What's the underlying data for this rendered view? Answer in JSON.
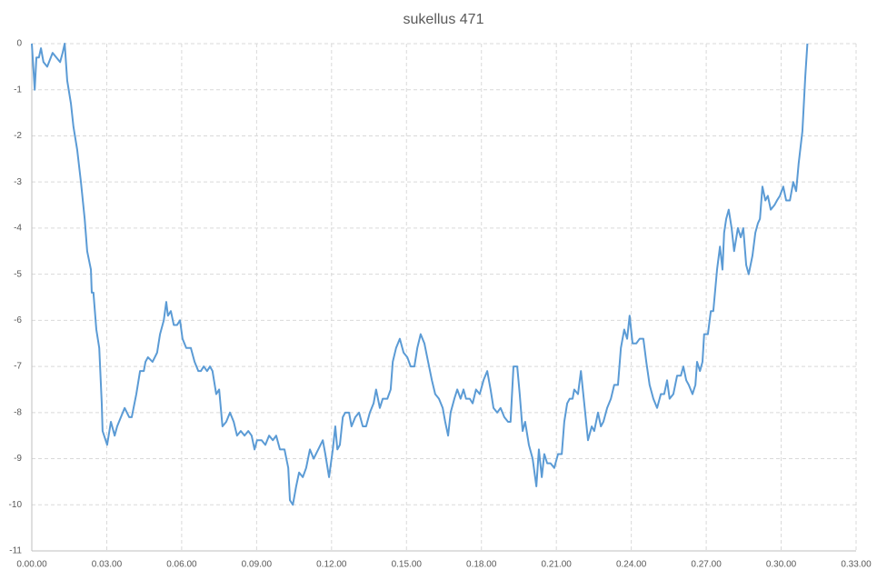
{
  "chart_data": {
    "type": "line",
    "title": "sukellus 471",
    "color": "#5b9bd5",
    "grid": true,
    "x": [
      0,
      7,
      11,
      17,
      22,
      28,
      37,
      50,
      59,
      68,
      74,
      79,
      85,
      94,
      100,
      109,
      118,
      127,
      133,
      142,
      144,
      148,
      155,
      162,
      168,
      170,
      181,
      190,
      199,
      205,
      214,
      223,
      234,
      240,
      251,
      260,
      269,
      273,
      279,
      290,
      301,
      308,
      317,
      323,
      327,
      334,
      341,
      349,
      356,
      362,
      371,
      382,
      391,
      400,
      406,
      413,
      421,
      428,
      434,
      443,
      450,
      458,
      467,
      476,
      485,
      493,
      502,
      511,
      520,
      528,
      535,
      541,
      552,
      561,
      570,
      579,
      587,
      596,
      607,
      616,
      620,
      627,
      635,
      642,
      651,
      659,
      668,
      677,
      688,
      699,
      705,
      714,
      723,
      729,
      734,
      740,
      747,
      753,
      762,
      768,
      777,
      786,
      795,
      803,
      812,
      821,
      827,
      836,
      843,
      854,
      862,
      867,
      875,
      884,
      893,
      902,
      910,
      919,
      926,
      934,
      943,
      952,
      961,
      969,
      978,
      987,
      993,
      1000,
      1006,
      1015,
      1022,
      1030,
      1037,
      1043,
      1052,
      1059,
      1067,
      1076,
      1085,
      1094,
      1102,
      1109,
      1118,
      1126,
      1135,
      1144,
      1150,
      1157,
      1166,
      1172,
      1179,
      1185,
      1194,
      1203,
      1212,
      1218,
      1225,
      1231,
      1238,
      1246,
      1255,
      1264,
      1273,
      1279,
      1286,
      1292,
      1299,
      1303,
      1312,
      1319,
      1327,
      1336,
      1345,
      1351,
      1360,
      1367,
      1373,
      1382,
      1391,
      1399,
      1408,
      1415,
      1423,
      1430,
      1436,
      1443,
      1452,
      1460,
      1469,
      1476,
      1484,
      1493,
      1502,
      1511,
      1519,
      1526,
      1532,
      1541,
      1550,
      1559,
      1565,
      1572,
      1578,
      1587,
      1594,
      1598,
      1605,
      1611,
      1615,
      1624,
      1631,
      1637,
      1646,
      1653,
      1659,
      1663,
      1668,
      1674,
      1681,
      1687,
      1696,
      1703,
      1709,
      1716,
      1722,
      1731,
      1738,
      1744,
      1749,
      1755,
      1762,
      1768,
      1775,
      1784,
      1790,
      1797,
      1805,
      1812,
      1821,
      1829,
      1836,
      1842,
      1851,
      1858,
      1863
    ],
    "values": [
      0,
      -1,
      -0.3,
      -0.3,
      -0.1,
      -0.4,
      -0.5,
      -0.2,
      -0.3,
      -0.4,
      -0.2,
      0,
      -0.8,
      -1.3,
      -1.8,
      -2.3,
      -3.0,
      -3.8,
      -4.5,
      -4.9,
      -5.4,
      -5.4,
      -6.2,
      -6.6,
      -7.8,
      -8.4,
      -8.7,
      -8.2,
      -8.5,
      -8.3,
      -8.1,
      -7.9,
      -8.1,
      -8.1,
      -7.6,
      -7.1,
      -7.1,
      -6.9,
      -6.8,
      -6.9,
      -6.7,
      -6.3,
      -6.0,
      -5.6,
      -5.9,
      -5.8,
      -6.1,
      -6.1,
      -6.0,
      -6.4,
      -6.6,
      -6.6,
      -6.9,
      -7.1,
      -7.1,
      -7.0,
      -7.1,
      -7.0,
      -7.1,
      -7.6,
      -7.5,
      -8.3,
      -8.2,
      -8.0,
      -8.2,
      -8.5,
      -8.4,
      -8.5,
      -8.4,
      -8.5,
      -8.8,
      -8.6,
      -8.6,
      -8.7,
      -8.5,
      -8.6,
      -8.5,
      -8.8,
      -8.8,
      -9.2,
      -9.9,
      -10.0,
      -9.6,
      -9.3,
      -9.4,
      -9.2,
      -8.8,
      -9.0,
      -8.8,
      -8.6,
      -8.9,
      -9.4,
      -8.8,
      -8.3,
      -8.8,
      -8.7,
      -8.1,
      -8.0,
      -8.0,
      -8.3,
      -8.1,
      -8.0,
      -8.3,
      -8.3,
      -8.0,
      -7.8,
      -7.5,
      -7.9,
      -7.7,
      -7.7,
      -7.5,
      -6.9,
      -6.6,
      -6.4,
      -6.7,
      -6.8,
      -7.0,
      -7.0,
      -6.6,
      -6.3,
      -6.5,
      -6.9,
      -7.3,
      -7.6,
      -7.7,
      -7.9,
      -8.2,
      -8.5,
      -8.0,
      -7.7,
      -7.5,
      -7.7,
      -7.5,
      -7.7,
      -7.7,
      -7.8,
      -7.5,
      -7.6,
      -7.3,
      -7.1,
      -7.5,
      -7.9,
      -8.0,
      -7.9,
      -8.1,
      -8.2,
      -8.2,
      -7.0,
      -7.0,
      -7.6,
      -8.4,
      -8.2,
      -8.7,
      -9.0,
      -9.6,
      -8.8,
      -9.4,
      -8.9,
      -9.1,
      -9.1,
      -9.2,
      -8.9,
      -8.9,
      -8.2,
      -7.8,
      -7.7,
      -7.7,
      -7.5,
      -7.6,
      -7.1,
      -7.8,
      -8.6,
      -8.3,
      -8.4,
      -8.0,
      -8.3,
      -8.2,
      -7.9,
      -7.7,
      -7.4,
      -7.4,
      -6.6,
      -6.2,
      -6.4,
      -5.9,
      -6.5,
      -6.5,
      -6.4,
      -6.4,
      -6.9,
      -7.4,
      -7.7,
      -7.9,
      -7.6,
      -7.6,
      -7.3,
      -7.7,
      -7.6,
      -7.2,
      -7.2,
      -7.0,
      -7.3,
      -7.4,
      -7.6,
      -7.4,
      -6.9,
      -7.1,
      -6.9,
      -6.3,
      -6.3,
      -5.8,
      -5.8,
      -4.9,
      -4.4,
      -4.9,
      -4.1,
      -3.8,
      -3.6,
      -4.0,
      -4.5,
      -4.0,
      -4.2,
      -4.0,
      -4.8,
      -5.0,
      -4.6,
      -4.1,
      -3.9,
      -3.8,
      -3.1,
      -3.4,
      -3.3,
      -3.6,
      -3.5,
      -3.4,
      -3.3,
      -3.1,
      -3.4,
      -3.4,
      -3.0,
      -3.2,
      -2.6,
      -1.9,
      -0.7,
      0
    ],
    "xlim": [
      0,
      1980
    ],
    "xticks": [
      {
        "value": 0,
        "label": "0.00.00"
      },
      {
        "value": 180,
        "label": "0.03.00"
      },
      {
        "value": 360,
        "label": "0.06.00"
      },
      {
        "value": 540,
        "label": "0.09.00"
      },
      {
        "value": 720,
        "label": "0.12.00"
      },
      {
        "value": 900,
        "label": "0.15.00"
      },
      {
        "value": 1080,
        "label": "0.18.00"
      },
      {
        "value": 1260,
        "label": "0.21.00"
      },
      {
        "value": 1440,
        "label": "0.24.00"
      },
      {
        "value": 1620,
        "label": "0.27.00"
      },
      {
        "value": 1800,
        "label": "0.30.00"
      },
      {
        "value": 1980,
        "label": "0.33.00"
      }
    ],
    "ylim": [
      -11,
      0
    ],
    "yticks": [
      0,
      -1,
      -2,
      -3,
      -4,
      -5,
      -6,
      -7,
      -8,
      -9,
      -10,
      -11
    ]
  }
}
